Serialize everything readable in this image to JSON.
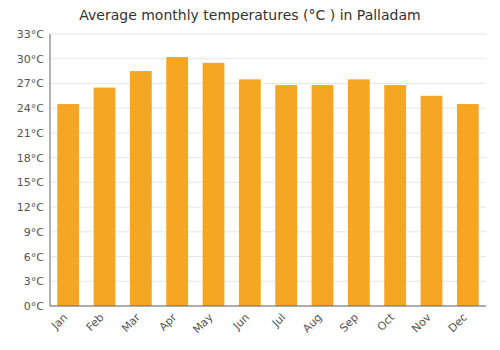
{
  "chart_data": {
    "type": "bar",
    "title": "Average monthly temperatures (°C ) in Palladam",
    "categories": [
      "Jan",
      "Feb",
      "Mar",
      "Apr",
      "May",
      "Jun",
      "Jul",
      "Aug",
      "Sep",
      "Oct",
      "Nov",
      "Dec"
    ],
    "values": [
      24.5,
      26.5,
      28.5,
      30.2,
      29.5,
      27.5,
      26.8,
      26.8,
      27.5,
      26.8,
      25.5,
      24.5
    ],
    "color": "#F5A623",
    "ylim": [
      0,
      33
    ],
    "yticks": [
      {
        "value": 0,
        "label": "0°C"
      },
      {
        "value": 3,
        "label": "3°C"
      },
      {
        "value": 6,
        "label": "6°C"
      },
      {
        "value": 9,
        "label": "9°C"
      },
      {
        "value": 12,
        "label": "12°C"
      },
      {
        "value": 15,
        "label": "15°C"
      },
      {
        "value": 18,
        "label": "18°C"
      },
      {
        "value": 21,
        "label": "21°C"
      },
      {
        "value": 24,
        "label": "24°C"
      },
      {
        "value": 27,
        "label": "27°C"
      },
      {
        "value": 30,
        "label": "30°C"
      },
      {
        "value": 33,
        "label": "33°C"
      }
    ],
    "grid": true
  }
}
